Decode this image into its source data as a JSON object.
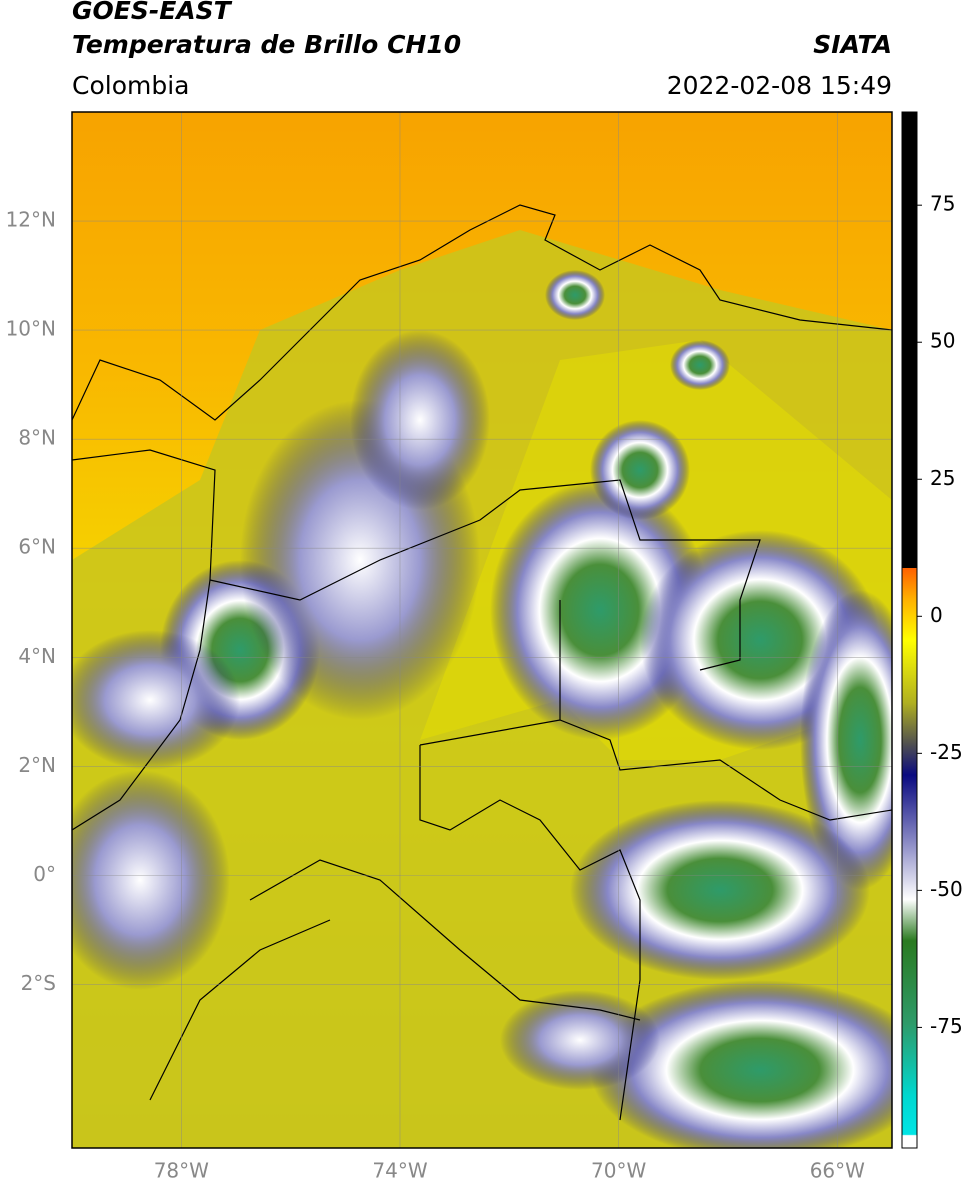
{
  "header": {
    "title": "GOES-EAST",
    "subtitle": "Temperatura de Brillo CH10",
    "source": "SIATA",
    "region": "Colombia",
    "datetime": "2022-02-08 15:49"
  },
  "map": {
    "xlim": [
      -80,
      -65
    ],
    "ylim": [
      -5,
      14
    ],
    "xticks": [
      {
        "value": -78,
        "label": "78°W"
      },
      {
        "value": -74,
        "label": "74°W"
      },
      {
        "value": -70,
        "label": "70°W"
      },
      {
        "value": -66,
        "label": "66°W"
      }
    ],
    "yticks": [
      {
        "value": 12,
        "label": "12°N"
      },
      {
        "value": 10,
        "label": "10°N"
      },
      {
        "value": 8,
        "label": "8°N"
      },
      {
        "value": 6,
        "label": "6°N"
      },
      {
        "value": 4,
        "label": "4°N"
      },
      {
        "value": 2,
        "label": "2°N"
      },
      {
        "value": 0,
        "label": "0°"
      },
      {
        "value": -2,
        "label": "2°S"
      }
    ],
    "grid": true
  },
  "colorbar": {
    "lim": [
      -97,
      92
    ],
    "ticks": [
      75,
      50,
      25,
      0,
      -25,
      -50,
      -75
    ]
  }
}
